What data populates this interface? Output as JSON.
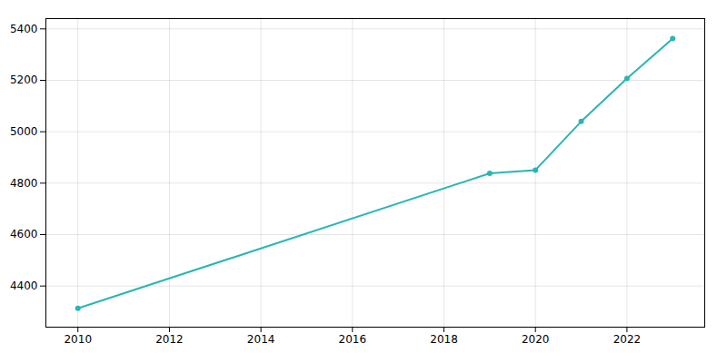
{
  "chart_data": {
    "type": "line",
    "x": [
      2010,
      2019,
      2020,
      2021,
      2022,
      2023
    ],
    "values": [
      4313,
      4838,
      4851,
      5040,
      5207,
      5362
    ],
    "color": "#2ab5b5",
    "marker": "circle",
    "xlim": [
      2009.3,
      2023.7
    ],
    "ylim": [
      4240,
      5440
    ],
    "xticks": [
      2010,
      2012,
      2014,
      2016,
      2018,
      2020,
      2022
    ],
    "yticks": [
      4400,
      4600,
      4800,
      5000,
      5200,
      5400
    ],
    "grid": true
  }
}
